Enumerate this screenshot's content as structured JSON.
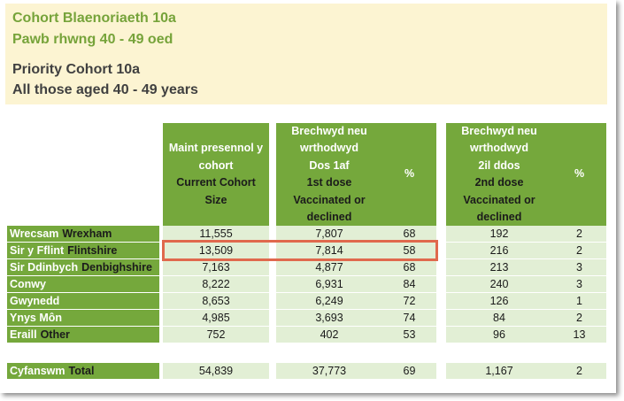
{
  "header": {
    "welsh_line1": "Cohort Blaenoriaeth 10a",
    "welsh_line2": "Pawb rhwng 40 - 49 oed",
    "english_line1": "Priority Cohort 10a",
    "english_line2": "All those aged 40 - 49 years"
  },
  "columns": {
    "current": {
      "welsh": [
        "Maint presennol y",
        "cohort"
      ],
      "english": [
        "Current Cohort",
        "Size"
      ]
    },
    "dose1": {
      "welsh": [
        "Brechwyd neu",
        "wrthodwyd",
        "Dos 1af"
      ],
      "english": [
        "1st dose",
        "Vaccinated or",
        "declined"
      ]
    },
    "pct1": "%",
    "dose2": {
      "welsh": [
        "Brechwyd neu",
        "wrthodwyd",
        "2il ddos"
      ],
      "english": [
        "2nd dose",
        "Vaccinated or",
        "declined"
      ]
    },
    "pct2": "%"
  },
  "rows": [
    {
      "welsh": "Wrecsam",
      "english": "Wrexham",
      "current": "11,555",
      "dose1": "7,807",
      "pct1": "68",
      "dose2": "192",
      "pct2": "2"
    },
    {
      "welsh": "Sir y Fflint",
      "english": "Flintshire",
      "current": "13,509",
      "dose1": "7,814",
      "pct1": "58",
      "dose2": "216",
      "pct2": "2"
    },
    {
      "welsh": "Sir Ddinbych",
      "english": "Denbighshire",
      "current": "7,163",
      "dose1": "4,877",
      "pct1": "68",
      "dose2": "213",
      "pct2": "3"
    },
    {
      "welsh": "Conwy",
      "english": "",
      "current": "8,222",
      "dose1": "6,931",
      "pct1": "84",
      "dose2": "240",
      "pct2": "3"
    },
    {
      "welsh": "Gwynedd",
      "english": "",
      "current": "8,653",
      "dose1": "6,249",
      "pct1": "72",
      "dose2": "126",
      "pct2": "1"
    },
    {
      "welsh": "Ynys Môn",
      "english": "",
      "current": "4,985",
      "dose1": "3,693",
      "pct1": "74",
      "dose2": "84",
      "pct2": "2"
    },
    {
      "welsh": "Eraill",
      "english": "Other",
      "current": "752",
      "dose1": "402",
      "pct1": "53",
      "dose2": "96",
      "pct2": "13"
    }
  ],
  "total": {
    "welsh": "Cyfanswm",
    "english": "Total",
    "current": "54,839",
    "dose1": "37,773",
    "pct1": "69",
    "dose2": "1,167",
    "pct2": "2"
  },
  "colors": {
    "green": "#75a83c",
    "light_green": "#e2efd5",
    "header_bg": "#fcf4d2",
    "highlight": "#e0694d"
  }
}
